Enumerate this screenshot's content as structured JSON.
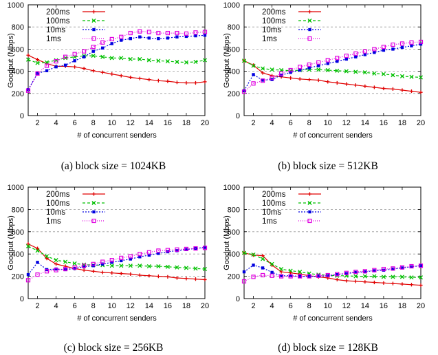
{
  "chart_data": [
    {
      "type": "line",
      "caption": "(a) block size = 1024KB",
      "xlabel": "# of concurrent senders",
      "ylabel": "Goodput (Mbps)",
      "xlim": [
        1,
        20
      ],
      "ylim": [
        0,
        1000
      ],
      "xticks": [
        2,
        4,
        6,
        8,
        10,
        12,
        14,
        16,
        18,
        20
      ],
      "yticks": [
        0,
        200,
        400,
        600,
        800,
        1000
      ],
      "grid": "horizontal dashed",
      "legend": "top-left",
      "x": [
        1,
        2,
        3,
        4,
        5,
        6,
        7,
        8,
        9,
        10,
        11,
        12,
        13,
        14,
        15,
        16,
        17,
        18,
        19,
        20
      ],
      "series": [
        {
          "name": "200ms",
          "color": "#e00000",
          "marker": "plus",
          "values": [
            545,
            505,
            470,
            445,
            445,
            440,
            425,
            405,
            390,
            375,
            360,
            345,
            335,
            325,
            315,
            310,
            300,
            295,
            295,
            305
          ]
        },
        {
          "name": "100ms",
          "color": "#00c000",
          "marker": "x",
          "values": [
            505,
            475,
            480,
            500,
            520,
            530,
            540,
            540,
            530,
            520,
            520,
            510,
            510,
            500,
            495,
            490,
            485,
            480,
            485,
            500
          ]
        },
        {
          "name": "10ms",
          "color": "#0000e0",
          "marker": "square",
          "values": [
            235,
            380,
            405,
            440,
            455,
            495,
            530,
            580,
            610,
            650,
            680,
            695,
            710,
            700,
            695,
            700,
            710,
            715,
            720,
            725
          ]
        },
        {
          "name": "1ms",
          "color": "#e000e0",
          "marker": "open-square",
          "values": [
            225,
            380,
            450,
            490,
            530,
            555,
            580,
            620,
            660,
            690,
            710,
            745,
            760,
            755,
            745,
            745,
            745,
            740,
            750,
            755
          ]
        }
      ]
    },
    {
      "type": "line",
      "caption": "(b) block size = 512KB",
      "xlabel": "# of concurrent senders",
      "ylabel": "Goodput (Mbps)",
      "xlim": [
        1,
        20
      ],
      "ylim": [
        0,
        1000
      ],
      "xticks": [
        2,
        4,
        6,
        8,
        10,
        12,
        14,
        16,
        18,
        20
      ],
      "yticks": [
        0,
        200,
        400,
        600,
        800,
        1000
      ],
      "grid": "horizontal dashed",
      "legend": "top-left",
      "x": [
        1,
        2,
        3,
        4,
        5,
        6,
        7,
        8,
        9,
        10,
        11,
        12,
        13,
        14,
        15,
        16,
        17,
        18,
        19,
        20
      ],
      "series": [
        {
          "name": "200ms",
          "color": "#e00000",
          "marker": "plus",
          "values": [
            495,
            455,
            385,
            360,
            350,
            340,
            330,
            325,
            320,
            305,
            295,
            285,
            275,
            265,
            255,
            245,
            240,
            230,
            220,
            210
          ]
        },
        {
          "name": "100ms",
          "color": "#00c000",
          "marker": "x",
          "values": [
            495,
            450,
            425,
            415,
            410,
            405,
            410,
            415,
            415,
            410,
            405,
            400,
            395,
            390,
            380,
            375,
            365,
            355,
            350,
            345
          ]
        },
        {
          "name": "10ms",
          "color": "#0000e0",
          "marker": "square",
          "values": [
            225,
            370,
            320,
            325,
            365,
            390,
            410,
            430,
            450,
            470,
            490,
            510,
            530,
            550,
            570,
            590,
            600,
            615,
            630,
            645
          ]
        },
        {
          "name": "1ms",
          "color": "#e000e0",
          "marker": "open-square",
          "values": [
            215,
            290,
            315,
            340,
            380,
            410,
            440,
            460,
            480,
            500,
            520,
            540,
            560,
            580,
            600,
            620,
            640,
            650,
            660,
            665
          ]
        }
      ]
    },
    {
      "type": "line",
      "caption": "(c) block size = 256KB",
      "xlabel": "# of concurrent senders",
      "ylabel": "Goodput (Mbps)",
      "xlim": [
        1,
        20
      ],
      "ylim": [
        0,
        1000
      ],
      "xticks": [
        2,
        4,
        6,
        8,
        10,
        12,
        14,
        16,
        18,
        20
      ],
      "yticks": [
        0,
        200,
        400,
        600,
        800,
        1000
      ],
      "grid": "horizontal dashed",
      "legend": "top-left",
      "x": [
        1,
        2,
        3,
        4,
        5,
        6,
        7,
        8,
        9,
        10,
        11,
        12,
        13,
        14,
        15,
        16,
        17,
        18,
        19,
        20
      ],
      "series": [
        {
          "name": "200ms",
          "color": "#e00000",
          "marker": "plus",
          "values": [
            490,
            450,
            360,
            310,
            290,
            270,
            255,
            245,
            235,
            230,
            225,
            220,
            210,
            205,
            200,
            195,
            185,
            180,
            175,
            170
          ]
        },
        {
          "name": "100ms",
          "color": "#00c000",
          "marker": "x",
          "values": [
            470,
            430,
            380,
            345,
            330,
            315,
            305,
            300,
            300,
            295,
            295,
            295,
            295,
            290,
            290,
            285,
            280,
            275,
            270,
            265
          ]
        },
        {
          "name": "10ms",
          "color": "#0000e0",
          "marker": "square",
          "values": [
            215,
            325,
            260,
            265,
            260,
            270,
            285,
            295,
            310,
            325,
            340,
            355,
            375,
            390,
            405,
            420,
            430,
            440,
            450,
            460
          ]
        },
        {
          "name": "1ms",
          "color": "#e000e0",
          "marker": "open-square",
          "values": [
            165,
            215,
            245,
            255,
            265,
            280,
            295,
            310,
            330,
            345,
            365,
            380,
            400,
            415,
            430,
            435,
            440,
            445,
            450,
            455
          ]
        }
      ]
    },
    {
      "type": "line",
      "caption": "(d) block size = 128KB",
      "xlabel": "# of concurrent senders",
      "ylabel": "Goodput (Mbps)",
      "xlim": [
        1,
        20
      ],
      "ylim": [
        0,
        1000
      ],
      "xticks": [
        2,
        4,
        6,
        8,
        10,
        12,
        14,
        16,
        18,
        20
      ],
      "yticks": [
        0,
        200,
        400,
        600,
        800,
        1000
      ],
      "grid": "horizontal dashed",
      "legend": "top-left",
      "x": [
        1,
        2,
        3,
        4,
        5,
        6,
        7,
        8,
        9,
        10,
        11,
        12,
        13,
        14,
        15,
        16,
        17,
        18,
        19,
        20
      ],
      "series": [
        {
          "name": "200ms",
          "color": "#e00000",
          "marker": "plus",
          "values": [
            410,
            390,
            385,
            300,
            240,
            230,
            220,
            205,
            195,
            185,
            170,
            160,
            155,
            150,
            145,
            140,
            135,
            130,
            125,
            120
          ]
        },
        {
          "name": "100ms",
          "color": "#00c000",
          "marker": "x",
          "values": [
            410,
            395,
            355,
            310,
            265,
            250,
            240,
            225,
            215,
            210,
            205,
            205,
            200,
            200,
            200,
            195,
            195,
            195,
            190,
            190
          ]
        },
        {
          "name": "10ms",
          "color": "#0000e0",
          "marker": "square",
          "values": [
            240,
            300,
            275,
            235,
            205,
            205,
            200,
            200,
            200,
            205,
            215,
            225,
            235,
            240,
            250,
            255,
            265,
            275,
            285,
            295
          ]
        },
        {
          "name": "1ms",
          "color": "#e000e0",
          "marker": "open-square",
          "values": [
            155,
            195,
            210,
            205,
            200,
            200,
            200,
            200,
            205,
            210,
            220,
            230,
            240,
            245,
            255,
            265,
            270,
            280,
            290,
            295
          ]
        }
      ]
    }
  ]
}
